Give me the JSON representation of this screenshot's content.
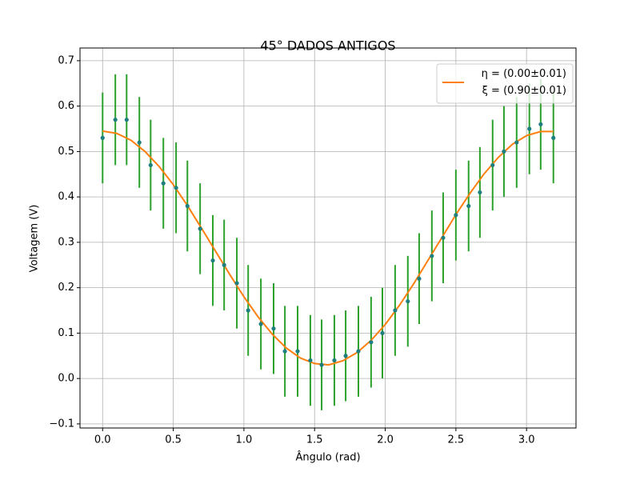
{
  "chart_data": {
    "type": "errorbar_fit",
    "title": "45° DADOS ANTIGOS",
    "x_label": "Ângulo (rad)",
    "y_label": "Voltagem (V)",
    "xlim": [
      -0.16,
      3.35
    ],
    "ylim": [
      -0.109,
      0.728
    ],
    "xticks": [
      {
        "value": 0,
        "label": "0.0"
      },
      {
        "value": 0.5,
        "label": "0.5"
      },
      {
        "value": 1,
        "label": "1.0"
      },
      {
        "value": 1.5,
        "label": "1.5"
      },
      {
        "value": 2,
        "label": "2.0"
      },
      {
        "value": 2.5,
        "label": "2.5"
      },
      {
        "value": 3,
        "label": "3.0"
      }
    ],
    "yticks": [
      {
        "value": -0.1,
        "label": "−0.1"
      },
      {
        "value": 0,
        "label": "0.0"
      },
      {
        "value": 0.1,
        "label": "0.1"
      },
      {
        "value": 0.2,
        "label": "0.2"
      },
      {
        "value": 0.3,
        "label": "0.3"
      },
      {
        "value": 0.4,
        "label": "0.4"
      },
      {
        "value": 0.5,
        "label": "0.5"
      },
      {
        "value": 0.6,
        "label": "0.6"
      },
      {
        "value": 0.7,
        "label": "0.7"
      }
    ],
    "grid": true,
    "legend": "upper right",
    "points": {
      "color": "#1f7f7f",
      "errorbar_color": "#2ca02c",
      "x": [
        0,
        0.09,
        0.17,
        0.26,
        0.34,
        0.43,
        0.52,
        0.6,
        0.69,
        0.78,
        0.86,
        0.95,
        1.03,
        1.12,
        1.21,
        1.29,
        1.38,
        1.47,
        1.55,
        1.64,
        1.72,
        1.81,
        1.9,
        1.98,
        2.07,
        2.16,
        2.24,
        2.33,
        2.41,
        2.5,
        2.59,
        2.67,
        2.76,
        2.84,
        2.93,
        3.02,
        3.1,
        3.19
      ],
      "values": [
        0.53,
        0.57,
        0.57,
        0.52,
        0.47,
        0.43,
        0.42,
        0.38,
        0.33,
        0.26,
        0.25,
        0.21,
        0.15,
        0.12,
        0.11,
        0.06,
        0.06,
        0.04,
        0.03,
        0.04,
        0.05,
        0.06,
        0.08,
        0.1,
        0.15,
        0.17,
        0.22,
        0.27,
        0.31,
        0.36,
        0.38,
        0.41,
        0.47,
        0.5,
        0.52,
        0.55,
        0.56,
        0.53
      ],
      "errors": [
        0.1,
        0.1,
        0.1,
        0.1,
        0.1,
        0.1,
        0.1,
        0.1,
        0.1,
        0.1,
        0.1,
        0.1,
        0.1,
        0.1,
        0.1,
        0.1,
        0.1,
        0.1,
        0.1,
        0.1,
        0.1,
        0.1,
        0.1,
        0.1,
        0.1,
        0.1,
        0.1,
        0.1,
        0.1,
        0.1,
        0.1,
        0.1,
        0.1,
        0.1,
        0.1,
        0.1,
        0.1,
        0.1
      ]
    },
    "series": [
      {
        "name": "η = (0.00±0.01)\nξ = (0.90±0.01)",
        "color": "#ff7f0e",
        "x": [
          0,
          0.1,
          0.2,
          0.3,
          0.4,
          0.5,
          0.6,
          0.7,
          0.8,
          0.9,
          1,
          1.1,
          1.2,
          1.3,
          1.4,
          1.5,
          1.6,
          1.7,
          1.8,
          1.9,
          2,
          2.1,
          2.2,
          2.3,
          2.4,
          2.5,
          2.6,
          2.7,
          2.8,
          2.9,
          3,
          3.1,
          3.19
        ],
        "values": [
          0.545,
          0.54,
          0.525,
          0.5,
          0.467,
          0.427,
          0.381,
          0.331,
          0.28,
          0.229,
          0.18,
          0.136,
          0.098,
          0.067,
          0.045,
          0.033,
          0.03,
          0.039,
          0.057,
          0.084,
          0.119,
          0.161,
          0.208,
          0.259,
          0.31,
          0.361,
          0.408,
          0.451,
          0.487,
          0.516,
          0.535,
          0.544,
          0.544
        ]
      }
    ]
  }
}
